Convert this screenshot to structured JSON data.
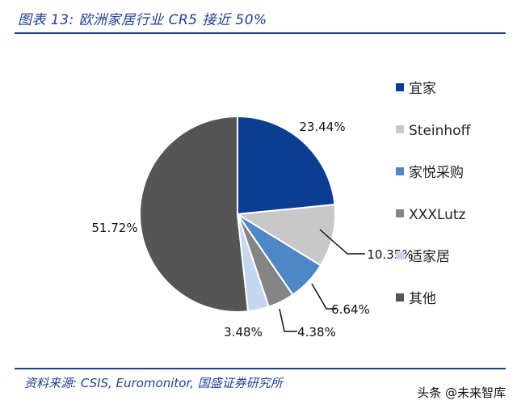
{
  "header": {
    "title": "图表 13:  欧洲家居行业 CR5 接近 50%"
  },
  "footer": {
    "source": "资料来源:  CSIS,  Euromonitor,  国盛证券研究所",
    "watermark": "头条 @未来智库"
  },
  "chart_data": {
    "type": "pie",
    "title": "",
    "legend_position": "right",
    "start_angle_deg": 0,
    "direction": "clockwise",
    "slices": [
      {
        "name": "宜家",
        "value": 23.44,
        "label": "23.44%",
        "color": "#0b3d91"
      },
      {
        "name": "Steinhoff",
        "value": 10.35,
        "label": "10.35%",
        "color": "#c8c8c8"
      },
      {
        "name": "家悦采购",
        "value": 6.64,
        "label": "6.64%",
        "color": "#4f86c6"
      },
      {
        "name": "XXXLutz",
        "value": 4.38,
        "label": "4.38%",
        "color": "#858585"
      },
      {
        "name": "适家居",
        "value": 3.48,
        "label": "3.48%",
        "color": "#c5d7ee"
      },
      {
        "name": "其他",
        "value": 51.72,
        "label": "51.72%",
        "color": "#555555"
      }
    ]
  }
}
